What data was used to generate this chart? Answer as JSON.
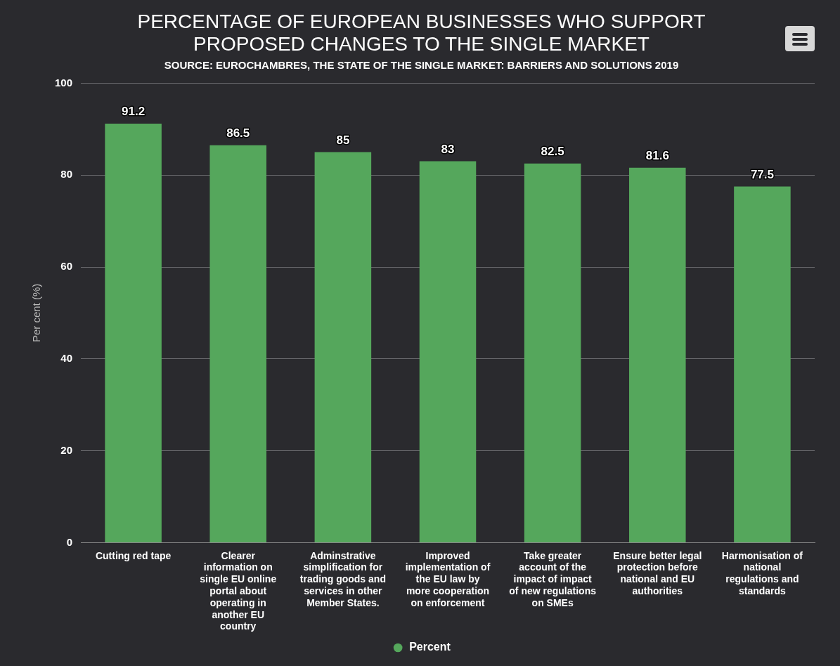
{
  "chart_data": {
    "type": "bar",
    "title": "PERCENTAGE OF EUROPEAN BUSINESSES WHO SUPPORT PROPOSED CHANGES TO THE SINGLE MARKET",
    "subtitle": "SOURCE: EUROCHAMBRES, THE STATE OF THE SINGLE MARKET: BARRIERS AND SOLUTIONS 2019",
    "ylabel": "Per cent (%)",
    "categories": [
      "Cutting red tape",
      "Clearer information on single EU online portal about operating in another EU country",
      "Adminstrative simplification for trading goods and services in other Member States.",
      "Improved implementation of the EU law by more cooperation on enforcement",
      "Take greater account of the impact of impact of new regulations on SMEs",
      "Ensure better legal protection before national and EU authorities",
      "Harmonisation of national regulations and standards"
    ],
    "series": [
      {
        "name": "Percent",
        "color": "#55a75c",
        "values": [
          91.2,
          86.5,
          85,
          83,
          82.5,
          81.6,
          77.5
        ]
      }
    ],
    "ylim": [
      0,
      100
    ],
    "yticks": [
      0,
      20,
      40,
      60,
      80,
      100
    ],
    "grid": "y",
    "legend": "bottom",
    "data_labels": true
  }
}
